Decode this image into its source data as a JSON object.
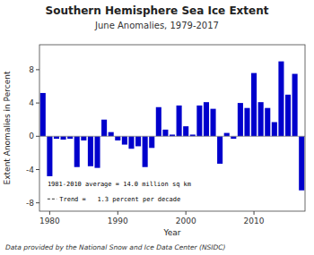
{
  "chart_data": {
    "type": "bar",
    "title": "Southern Hemisphere Sea Ice Extent",
    "subtitle": "June Anomalies, 1979-2017",
    "xlabel": "Year",
    "ylabel": "Extent Anomalies in Percent",
    "footnote": "Data provided by the National Snow and Ice Data Center (NSIDC)",
    "annotations": [
      "1981-2010 average = 14.0 million sq km",
      "Trend =   1.3 percent per decade"
    ],
    "x": [
      1979,
      1980,
      1981,
      1982,
      1983,
      1984,
      1985,
      1986,
      1987,
      1988,
      1989,
      1990,
      1991,
      1992,
      1993,
      1994,
      1995,
      1996,
      1997,
      1998,
      1999,
      2000,
      2001,
      2002,
      2003,
      2004,
      2005,
      2006,
      2007,
      2008,
      2009,
      2010,
      2011,
      2012,
      2013,
      2014,
      2015,
      2016,
      2017
    ],
    "values": [
      5.2,
      -4.8,
      -0.3,
      -0.4,
      -0.3,
      -3.7,
      -0.5,
      -3.6,
      -3.8,
      2.0,
      0.5,
      -0.5,
      -1.0,
      -1.5,
      -1.2,
      -3.7,
      -1.4,
      3.5,
      0.8,
      0.2,
      3.7,
      1.2,
      0.2,
      3.7,
      4.1,
      3.3,
      -3.3,
      0.4,
      -0.3,
      4.0,
      3.4,
      7.6,
      4.1,
      3.4,
      1.7,
      9.0,
      5.0,
      7.5,
      -6.5
    ],
    "color": "#0000cc",
    "xlim": [
      1978.5,
      2017.5
    ],
    "xticks": [
      1980,
      1990,
      2000,
      2010
    ],
    "ylim": [
      -9,
      11
    ],
    "yticks": [
      -8,
      -4,
      0,
      4,
      8
    ],
    "grid": false
  }
}
